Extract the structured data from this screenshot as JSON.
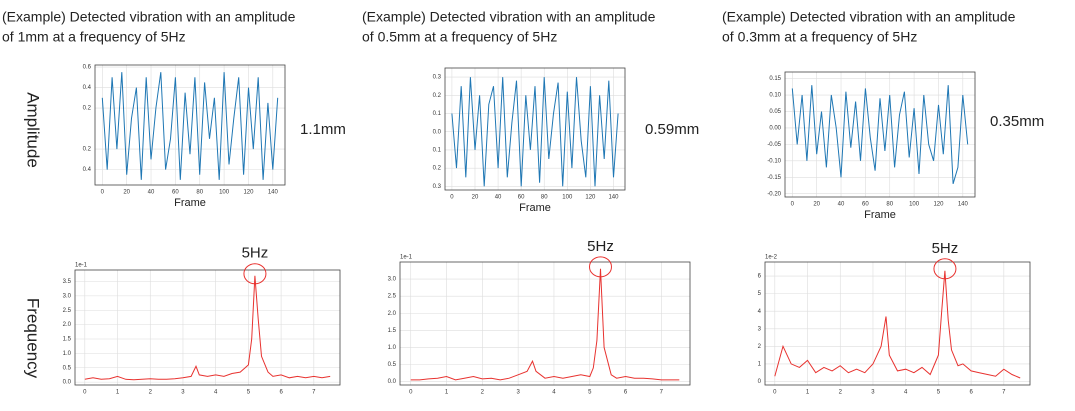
{
  "row_labels": [
    "Amplitude",
    "Frequency"
  ],
  "chart_data": [
    {
      "type": "line",
      "title": [
        "(Example) Detected vibration with an amplitude",
        "of 1mm at a frequency of 5Hz"
      ],
      "xlabel": "Frame",
      "annotation": "1.1mm",
      "color": "#1f77b4",
      "grid": true,
      "x": [
        0,
        4,
        8,
        12,
        16,
        20,
        24,
        28,
        32,
        36,
        40,
        44,
        48,
        52,
        56,
        60,
        64,
        68,
        72,
        76,
        80,
        84,
        88,
        92,
        96,
        100,
        104,
        108,
        112,
        116,
        120,
        124,
        128,
        132,
        136,
        140,
        144
      ],
      "values": [
        0.3,
        -0.4,
        0.5,
        -0.2,
        0.55,
        -0.45,
        0.1,
        0.4,
        -0.5,
        0.5,
        -0.3,
        0.2,
        0.55,
        -0.4,
        -0.1,
        0.5,
        -0.5,
        0.35,
        -0.25,
        0.5,
        -0.45,
        0.45,
        -0.1,
        0.3,
        -0.5,
        0.55,
        -0.35,
        0.1,
        0.5,
        -0.45,
        0.4,
        -0.2,
        0.5,
        -0.5,
        0.25,
        -0.4,
        0.3
      ],
      "xlim": [
        -6,
        150
      ],
      "xticks": [
        0,
        20,
        40,
        60,
        80,
        100,
        120,
        140
      ],
      "ylim": [
        -0.55,
        0.62
      ],
      "yticks": [
        0.6,
        0.4,
        0.2,
        {
          "value": -0.2,
          "label": "0.2"
        },
        {
          "value": -0.4,
          "label": "0.4"
        }
      ]
    },
    {
      "type": "line",
      "title": [
        "(Example) Detected vibration with an amplitude",
        "of 0.5mm at a frequency of 5Hz"
      ],
      "xlabel": "Frame",
      "annotation": "0.59mm",
      "color": "#1f77b4",
      "grid": true,
      "x": [
        0,
        4,
        8,
        12,
        16,
        20,
        24,
        28,
        32,
        36,
        40,
        44,
        48,
        52,
        56,
        60,
        64,
        68,
        72,
        76,
        80,
        84,
        88,
        92,
        96,
        100,
        104,
        108,
        112,
        116,
        120,
        124,
        128,
        132,
        136,
        140,
        144
      ],
      "values": [
        0.1,
        -0.2,
        0.25,
        -0.25,
        0.3,
        -0.1,
        0.2,
        -0.3,
        0.15,
        0.25,
        -0.2,
        0.3,
        -0.25,
        0.05,
        0.28,
        -0.3,
        0.2,
        -0.1,
        0.25,
        -0.28,
        0.3,
        -0.15,
        0.1,
        0.27,
        -0.3,
        0.22,
        -0.2,
        0.3,
        -0.05,
        -0.25,
        0.25,
        -0.3,
        0.2,
        -0.15,
        0.28,
        -0.25,
        0.1
      ],
      "xlim": [
        -6,
        150
      ],
      "xticks": [
        0,
        20,
        40,
        60,
        80,
        100,
        120,
        140
      ],
      "ylim": [
        -0.32,
        0.35
      ],
      "yticks": [
        0.3,
        0.2,
        0.1,
        {
          "value": 0,
          "label": "0.0"
        },
        {
          "value": -0.1,
          "label": "0.1"
        },
        {
          "value": -0.2,
          "label": "0.2"
        },
        {
          "value": -0.3,
          "label": "0.3"
        }
      ]
    },
    {
      "type": "line",
      "title": [
        "(Example) Detected vibration with an amplitude",
        "of 0.3mm at a frequency of 5Hz"
      ],
      "xlabel": "Frame",
      "annotation": "0.35mm",
      "color": "#1f77b4",
      "grid": true,
      "x": [
        0,
        4,
        8,
        12,
        16,
        20,
        24,
        28,
        32,
        36,
        40,
        44,
        48,
        52,
        56,
        60,
        64,
        68,
        72,
        76,
        80,
        84,
        88,
        92,
        96,
        100,
        104,
        108,
        112,
        116,
        120,
        124,
        128,
        132,
        136,
        140,
        144
      ],
      "values": [
        0.12,
        -0.05,
        0.1,
        -0.1,
        0.13,
        -0.08,
        0.05,
        -0.12,
        0.1,
        0.0,
        -0.15,
        0.11,
        -0.06,
        0.08,
        -0.1,
        0.12,
        -0.03,
        -0.13,
        0.09,
        -0.07,
        0.1,
        -0.12,
        0.04,
        0.11,
        -0.09,
        0.06,
        -0.14,
        0.1,
        -0.05,
        -0.1,
        0.07,
        -0.08,
        0.13,
        -0.17,
        -0.12,
        0.1,
        -0.05
      ],
      "xlim": [
        -6,
        150
      ],
      "xticks": [
        0,
        20,
        40,
        60,
        80,
        100,
        120,
        140
      ],
      "ylim": [
        -0.21,
        0.17
      ],
      "yticks": [
        {
          "value": 0.15,
          "label": "0.15"
        },
        {
          "value": 0.1,
          "label": "0.10"
        },
        {
          "value": 0.05,
          "label": "0.05"
        },
        {
          "value": 0,
          "label": "0.00"
        },
        {
          "value": -0.05,
          "label": "-0.05"
        },
        {
          "value": -0.1,
          "label": "-0.10"
        },
        {
          "value": -0.15,
          "label": "-0.15"
        },
        {
          "value": -0.2,
          "label": "-0.20"
        }
      ]
    },
    {
      "type": "line",
      "annotation": "5Hz",
      "y_offset_label": "1e-1",
      "color": "#e8322f",
      "grid": true,
      "x": [
        0,
        0.25,
        0.5,
        0.75,
        1,
        1.25,
        1.5,
        1.75,
        2,
        2.25,
        2.5,
        2.75,
        3,
        3.25,
        3.4,
        3.5,
        3.75,
        4,
        4.25,
        4.5,
        4.75,
        5,
        5.1,
        5.2,
        5.3,
        5.4,
        5.6,
        5.75,
        6,
        6.25,
        6.5,
        6.75,
        7,
        7.25,
        7.5
      ],
      "values": [
        0.1,
        0.15,
        0.1,
        0.12,
        0.2,
        0.1,
        0.08,
        0.1,
        0.12,
        0.1,
        0.1,
        0.12,
        0.15,
        0.2,
        0.55,
        0.25,
        0.2,
        0.25,
        0.2,
        0.3,
        0.35,
        0.6,
        1.5,
        3.7,
        2.2,
        0.9,
        0.35,
        0.2,
        0.25,
        0.15,
        0.2,
        0.15,
        0.2,
        0.15,
        0.2
      ],
      "xlim": [
        -0.3,
        7.8
      ],
      "xticks": [
        0,
        1,
        2,
        3,
        4,
        5,
        6,
        7
      ],
      "ylim": [
        -0.1,
        3.9
      ],
      "yticks": [
        {
          "value": 0,
          "label": "0.0"
        },
        0.5,
        {
          "value": 1,
          "label": "1.0"
        },
        1.5,
        {
          "value": 2,
          "label": "2.0"
        },
        2.5,
        {
          "value": 3,
          "label": "3.0"
        },
        3.5
      ]
    },
    {
      "type": "line",
      "annotation": "5Hz",
      "y_offset_label": "1e-1",
      "color": "#e8322f",
      "grid": true,
      "x": [
        0,
        0.25,
        0.5,
        0.75,
        1,
        1.25,
        1.5,
        1.75,
        2,
        2.25,
        2.5,
        2.75,
        3,
        3.25,
        3.4,
        3.5,
        3.75,
        4,
        4.25,
        4.5,
        4.75,
        5,
        5.1,
        5.2,
        5.3,
        5.4,
        5.6,
        5.75,
        6,
        6.25,
        6.5,
        6.75,
        7,
        7.25,
        7.5
      ],
      "values": [
        0.05,
        0.05,
        0.08,
        0.1,
        0.15,
        0.05,
        0.1,
        0.15,
        0.08,
        0.1,
        0.05,
        0.1,
        0.2,
        0.3,
        0.6,
        0.3,
        0.1,
        0.15,
        0.1,
        0.15,
        0.2,
        0.15,
        0.4,
        1.2,
        3.3,
        1.0,
        0.2,
        0.1,
        0.15,
        0.1,
        0.1,
        0.08,
        0.05,
        0.05,
        0.05
      ],
      "xlim": [
        -0.3,
        7.8
      ],
      "xticks": [
        0,
        1,
        2,
        3,
        4,
        5,
        6,
        7
      ],
      "ylim": [
        -0.1,
        3.5
      ],
      "yticks": [
        {
          "value": 0,
          "label": "0.0"
        },
        0.5,
        {
          "value": 1,
          "label": "1.0"
        },
        1.5,
        {
          "value": 2,
          "label": "2.0"
        },
        2.5,
        {
          "value": 3,
          "label": "3.0"
        }
      ]
    },
    {
      "type": "line",
      "annotation": "5Hz",
      "y_offset_label": "1e-2",
      "color": "#e8322f",
      "grid": true,
      "x": [
        0,
        0.25,
        0.5,
        0.75,
        1,
        1.25,
        1.5,
        1.75,
        2,
        2.25,
        2.5,
        2.75,
        3,
        3.25,
        3.4,
        3.5,
        3.75,
        4,
        4.25,
        4.5,
        4.75,
        5,
        5.1,
        5.2,
        5.3,
        5.4,
        5.6,
        5.75,
        6,
        6.25,
        6.5,
        6.75,
        7,
        7.25,
        7.5
      ],
      "values": [
        0.3,
        2.0,
        1.0,
        0.8,
        1.2,
        0.5,
        0.8,
        0.6,
        0.9,
        0.5,
        0.7,
        0.5,
        1.0,
        2.0,
        3.7,
        1.5,
        0.6,
        0.7,
        0.5,
        0.8,
        0.4,
        1.5,
        4.0,
        6.3,
        3.5,
        1.8,
        0.9,
        1.0,
        0.6,
        0.5,
        0.4,
        0.3,
        0.7,
        0.4,
        0.2
      ],
      "xlim": [
        -0.3,
        7.8
      ],
      "xticks": [
        0,
        1,
        2,
        3,
        4,
        5,
        6,
        7
      ],
      "ylim": [
        -0.2,
        6.8
      ],
      "yticks": [
        0,
        1,
        2,
        3,
        4,
        5,
        6
      ]
    }
  ]
}
